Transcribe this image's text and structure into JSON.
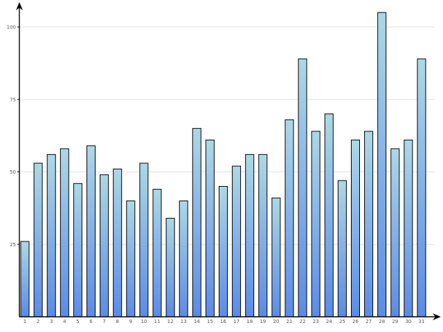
{
  "chart_data": {
    "type": "bar",
    "categories": [
      "1",
      "2",
      "3",
      "4",
      "5",
      "6",
      "7",
      "8",
      "9",
      "10",
      "11",
      "12",
      "13",
      "14",
      "15",
      "16",
      "17",
      "18",
      "19",
      "20",
      "21",
      "22",
      "23",
      "24",
      "25",
      "26",
      "27",
      "28",
      "29",
      "30",
      "31"
    ],
    "values": [
      26,
      53,
      56,
      58,
      46,
      59,
      49,
      51,
      40,
      53,
      44,
      34,
      40,
      65,
      61,
      45,
      52,
      56,
      56,
      41,
      68,
      89,
      64,
      70,
      47,
      61,
      64,
      105,
      58,
      61,
      89
    ],
    "title": "",
    "xlabel": "",
    "ylabel": "",
    "ylim": [
      0,
      100
    ],
    "y_ticks": [
      "25",
      "50",
      "75",
      "100"
    ],
    "grid": "horizontal",
    "legend": "none",
    "colors": {
      "bar_top": "#add8e6",
      "bar_bottom": "#5b8be8",
      "bar_outline": "#000000",
      "grid": "#e2e2e2",
      "axis": "#000000",
      "tick_label": "#555555"
    }
  }
}
